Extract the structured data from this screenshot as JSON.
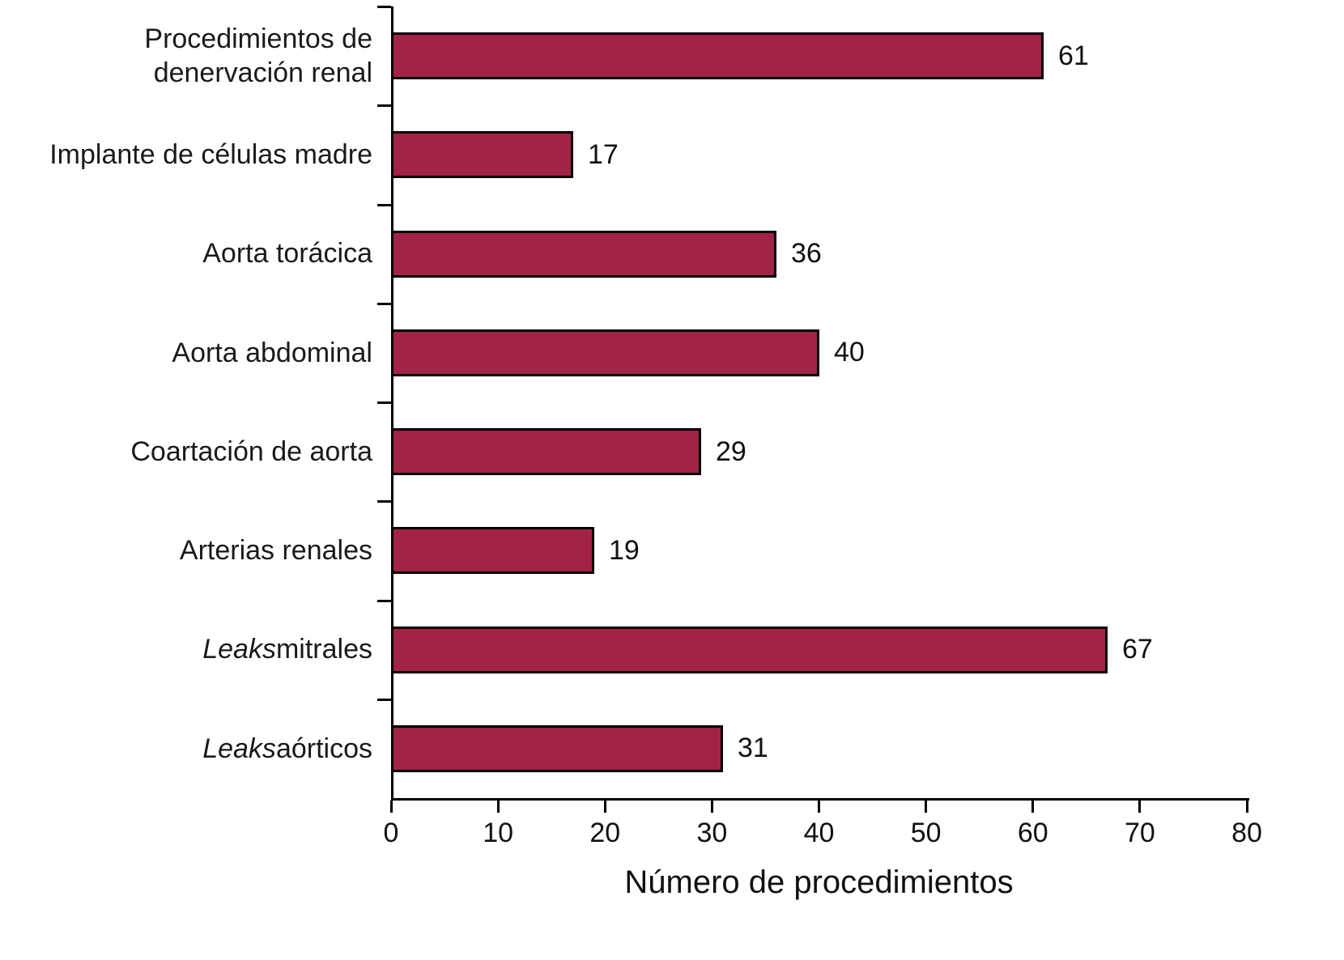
{
  "chart_data": {
    "type": "bar",
    "orientation": "horizontal",
    "title": "",
    "categories": [
      "Procedimientos de denervación renal",
      "Implante de células madre",
      "Aorta torácica",
      "Aorta abdominal",
      "Coartación de aorta",
      "Arterias renales",
      "Leaks mitrales",
      "Leaks aórticos"
    ],
    "values": [
      61,
      17,
      36,
      40,
      29,
      19,
      67,
      31
    ],
    "italic_words": [
      "Leaks"
    ],
    "xlabel": "Número de procedimientos",
    "xlim": [
      0,
      80
    ],
    "xticks": [
      0,
      10,
      20,
      30,
      40,
      50,
      60,
      70,
      80
    ],
    "bar_color": "#A22345",
    "bar_border_color": "#000000",
    "axis_color": "#000000",
    "grid": "off",
    "legend": "none",
    "value_labels": "right-of-bar"
  }
}
